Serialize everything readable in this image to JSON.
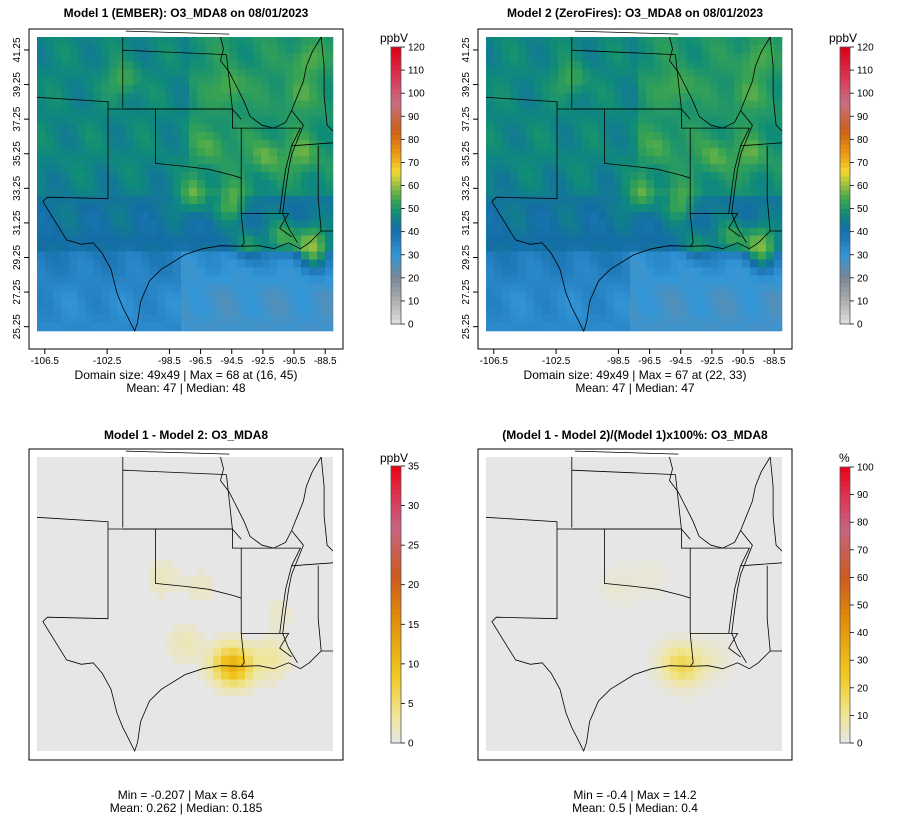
{
  "chart_data": [
    {
      "type": "heatmap",
      "title": "Model 1 (EMBER): O3_MDA8 on 08/01/2023",
      "unit": "ppbV",
      "x_ticks": [
        "-106.5",
        "-102.5",
        "-98.5",
        "-96.5",
        "-94.5",
        "-92.5",
        "-90.5",
        "-88.5"
      ],
      "y_ticks": [
        "25.25",
        "27.25",
        "29.25",
        "31.25",
        "33.25",
        "35.25",
        "37.25",
        "39.25",
        "41.25"
      ],
      "xlim": [
        -107,
        -88
      ],
      "ylim": [
        25,
        42
      ],
      "colorbar": {
        "min": 0,
        "max": 120,
        "ticks": [
          "0",
          "10",
          "20",
          "30",
          "40",
          "50",
          "60",
          "70",
          "80",
          "90",
          "100",
          "110",
          "120"
        ]
      },
      "stats_line1": "Domain size: 49x49 | Max = 68 at (16, 45)",
      "stats_line2": "Mean: 47 |  Median: 48",
      "hotspots": [
        {
          "lon": -101.5,
          "lat": 39.5,
          "value": 62
        },
        {
          "lon": -94.6,
          "lat": 39.1,
          "value": 63
        },
        {
          "lon": -90.4,
          "lat": 38.6,
          "value": 60
        },
        {
          "lon": -89.8,
          "lat": 40.6,
          "value": 62
        },
        {
          "lon": -95.8,
          "lat": 35.7,
          "value": 60
        },
        {
          "lon": -92.3,
          "lat": 35.1,
          "value": 63
        },
        {
          "lon": -90.0,
          "lat": 35.2,
          "value": 62
        },
        {
          "lon": -97.0,
          "lat": 32.8,
          "value": 64
        },
        {
          "lon": -94.5,
          "lat": 32.4,
          "value": 66
        },
        {
          "lon": -91.2,
          "lat": 30.4,
          "value": 64
        },
        {
          "lon": -89.5,
          "lat": 30.2,
          "value": 68
        },
        {
          "lon": -93.5,
          "lat": 30.0,
          "value": 58
        },
        {
          "lon": -89.2,
          "lat": 29.5,
          "value": 64
        }
      ]
    },
    {
      "type": "heatmap",
      "title": "Model 2 (ZeroFires): O3_MDA8 on 08/01/2023",
      "unit": "ppbV",
      "x_ticks": [
        "-106.5",
        "-102.5",
        "-98.5",
        "-96.5",
        "-94.5",
        "-92.5",
        "-90.5",
        "-88.5"
      ],
      "y_ticks": [
        "25.25",
        "27.25",
        "29.25",
        "31.25",
        "33.25",
        "35.25",
        "37.25",
        "39.25",
        "41.25"
      ],
      "xlim": [
        -107,
        -88
      ],
      "ylim": [
        25,
        42
      ],
      "colorbar": {
        "min": 0,
        "max": 120,
        "ticks": [
          "0",
          "10",
          "20",
          "30",
          "40",
          "50",
          "60",
          "70",
          "80",
          "90",
          "100",
          "110",
          "120"
        ]
      },
      "stats_line1": "Domain size: 49x49 | Max = 67 at (22, 33)",
      "stats_line2": "Mean: 47 |  Median: 47",
      "hotspots": [
        {
          "lon": -101.5,
          "lat": 39.5,
          "value": 61
        },
        {
          "lon": -94.6,
          "lat": 39.1,
          "value": 62
        },
        {
          "lon": -90.4,
          "lat": 38.6,
          "value": 60
        },
        {
          "lon": -89.8,
          "lat": 40.6,
          "value": 61
        },
        {
          "lon": -95.8,
          "lat": 35.7,
          "value": 59
        },
        {
          "lon": -92.3,
          "lat": 35.1,
          "value": 62
        },
        {
          "lon": -90.0,
          "lat": 35.2,
          "value": 61
        },
        {
          "lon": -97.0,
          "lat": 32.8,
          "value": 63
        },
        {
          "lon": -94.5,
          "lat": 32.4,
          "value": 64
        },
        {
          "lon": -91.2,
          "lat": 30.4,
          "value": 62
        },
        {
          "lon": -89.5,
          "lat": 30.2,
          "value": 67
        },
        {
          "lon": -93.5,
          "lat": 30.0,
          "value": 56
        },
        {
          "lon": -89.2,
          "lat": 29.5,
          "value": 62
        }
      ]
    },
    {
      "type": "heatmap",
      "title": "Model 1 - Model 2: O3_MDA8",
      "unit": "ppbV",
      "xlim": [
        -107,
        -88
      ],
      "ylim": [
        25,
        42
      ],
      "colorbar": {
        "min": 0,
        "max": 35,
        "ticks": [
          "0",
          "5",
          "10",
          "15",
          "20",
          "25",
          "30",
          "35"
        ]
      },
      "stats_line1": "Min = -0.207 | Max = 8.64",
      "stats_line2": "Mean: 0.262 |  Median: 0.185",
      "hotspots": [
        {
          "lon": -95.0,
          "lat": 30.0,
          "value": 4.5
        },
        {
          "lon": -94.2,
          "lat": 29.9,
          "value": 8.64
        },
        {
          "lon": -92.0,
          "lat": 30.3,
          "value": 3.0
        },
        {
          "lon": -97.5,
          "lat": 31.2,
          "value": 2.0
        },
        {
          "lon": -99.0,
          "lat": 35.0,
          "value": 1.5
        },
        {
          "lon": -96.5,
          "lat": 34.5,
          "value": 1.2
        },
        {
          "lon": -91.5,
          "lat": 33.0,
          "value": 1.0
        }
      ]
    },
    {
      "type": "heatmap",
      "title": "(Model 1 - Model 2)/(Model 1)x100%: O3_MDA8",
      "unit": "%",
      "xlim": [
        -107,
        -88
      ],
      "ylim": [
        25,
        42
      ],
      "colorbar": {
        "min": 0,
        "max": 100,
        "ticks": [
          "0",
          "10",
          "20",
          "30",
          "40",
          "50",
          "60",
          "70",
          "80",
          "90",
          "100"
        ]
      },
      "stats_line1": "Min = -0.4 | Max = 14.2",
      "stats_line2": "Mean: 0.5 |  Median: 0.4",
      "hotspots": [
        {
          "lon": -94.2,
          "lat": 29.9,
          "value": 14.2
        },
        {
          "lon": -95.0,
          "lat": 30.1,
          "value": 7.0
        },
        {
          "lon": -92.5,
          "lat": 30.3,
          "value": 4.0
        },
        {
          "lon": -98.5,
          "lat": 34.5,
          "value": 2.5
        },
        {
          "lon": -96.5,
          "lat": 35.0,
          "value": 2.0
        }
      ]
    }
  ],
  "colors": {
    "map_border": "#000000",
    "diff_background": "#e6e6e6"
  }
}
